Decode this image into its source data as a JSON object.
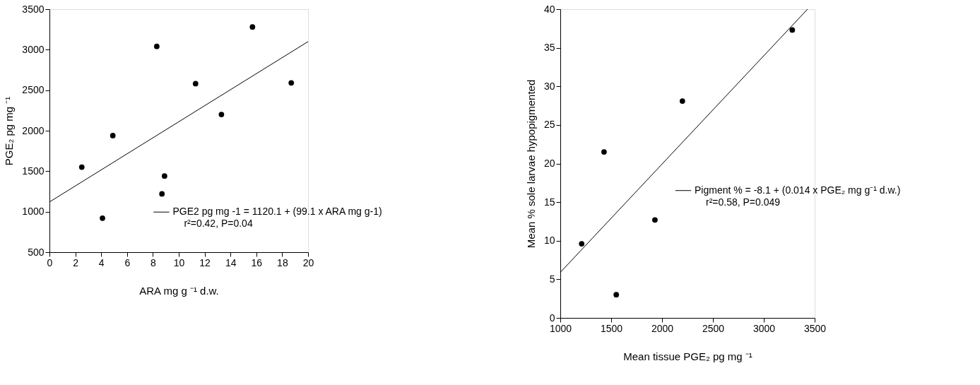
{
  "chart_data": [
    {
      "type": "scatter",
      "xlabel": "ARA mg g ⁻¹ d.w.",
      "ylabel": "PGE₂ pg mg ⁻¹",
      "xlim": [
        0,
        20
      ],
      "xticks": [
        0,
        2,
        4,
        6,
        8,
        10,
        12,
        14,
        16,
        18,
        20
      ],
      "ylim": [
        500,
        3500
      ],
      "yticks": [
        500,
        1000,
        1500,
        2000,
        2500,
        3000,
        3500
      ],
      "grid": false,
      "legend": "bottom right",
      "series": [
        {
          "marker": "circle",
          "color": "#000000",
          "x": [
            2.5,
            4.1,
            4.9,
            8.3,
            8.7,
            8.9,
            11.3,
            13.3,
            15.7,
            18.7
          ],
          "values": [
            1550,
            920,
            1940,
            3040,
            1220,
            1440,
            2580,
            2200,
            3280,
            2590
          ]
        },
        {
          "type": "line",
          "name": "PGE2 pg mg -1 = 1120.1 + (99.1 x ARA mg g-1)",
          "color": "#000000",
          "x": [
            0,
            20
          ],
          "values": [
            1120,
            3100
          ]
        }
      ],
      "annotations": [
        "r²=0.42, P=0.04"
      ]
    },
    {
      "type": "scatter",
      "xlabel": "Mean tissue PGE₂ pg mg ⁻¹",
      "ylabel": "Mean % sole larvae hypopigmented",
      "xlim": [
        1000,
        3500
      ],
      "xticks": [
        1000,
        1500,
        2000,
        2500,
        3000,
        3500
      ],
      "ylim": [
        0,
        40
      ],
      "yticks": [
        0,
        5,
        10,
        15,
        20,
        25,
        30,
        35,
        40
      ],
      "grid": false,
      "legend": "right",
      "series": [
        {
          "marker": "circle",
          "color": "#000000",
          "x": [
            1210,
            1430,
            1550,
            1930,
            2200,
            3280
          ],
          "values": [
            9.6,
            21.5,
            3.0,
            12.7,
            28.1,
            37.3
          ]
        },
        {
          "type": "line",
          "name": "Pigment % = -8.1 + (0.014 x PGE₂ mg g⁻¹ d.w.)",
          "color": "#000000",
          "x": [
            1000,
            3430
          ],
          "values": [
            5.9,
            40
          ]
        }
      ],
      "annotations": [
        "r²=0.58, P=0.049"
      ]
    }
  ]
}
